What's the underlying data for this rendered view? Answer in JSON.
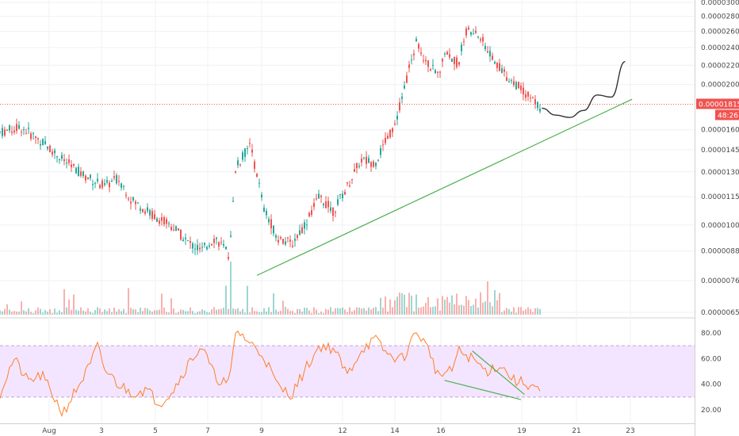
{
  "chart_data": [
    {
      "type": "candlestick",
      "panel": "price",
      "y_scale": "log",
      "ylim": [
        6.5e-06,
        3e-05
      ],
      "ytick_labels": [
        "0.00003000",
        "0.00002800",
        "0.00002600",
        "0.00002400",
        "0.00002200",
        "0.00002000",
        "0.00001815",
        "0.00001600",
        "0.00001450",
        "0.00001300",
        "0.00001150",
        "0.00001000",
        "0.00000880",
        "0.00000760",
        "0.00000650"
      ],
      "ytick_values": [
        3e-05,
        2.8e-05,
        2.6e-05,
        2.4e-05,
        2.2e-05,
        2e-05,
        1.815e-05,
        1.6e-05,
        1.45e-05,
        1.3e-05,
        1.15e-05,
        1e-05,
        8.8e-06,
        7.6e-06,
        6.5e-06
      ],
      "x_labels": [
        "Aug",
        "3",
        "5",
        "7",
        "9",
        "12",
        "14",
        "16",
        "19",
        "21",
        "23"
      ],
      "current_price": "0.00001815",
      "countdown": "48:26",
      "up_color": "#26a69a",
      "down_color": "#ef5350",
      "trendline_color": "#4caf50",
      "projection_color": "#333333",
      "volume": "shown as bars at bottom of price panel",
      "price_path": [
        [
          0,
          1.58e-05
        ],
        [
          0.03,
          1.62e-05
        ],
        [
          0.06,
          1.51e-05
        ],
        [
          0.09,
          1.38e-05
        ],
        [
          0.12,
          1.28e-05
        ],
        [
          0.15,
          1.21e-05
        ],
        [
          0.17,
          1.26e-05
        ],
        [
          0.19,
          1.13e-05
        ],
        [
          0.22,
          1.05e-05
        ],
        [
          0.25,
          9.9e-06
        ],
        [
          0.27,
          9.2e-06
        ],
        [
          0.29,
          8.8e-06
        ],
        [
          0.31,
          9.4e-06
        ],
        [
          0.33,
          8.6e-06
        ],
        [
          0.34,
          1.33e-05
        ],
        [
          0.36,
          1.48e-05
        ],
        [
          0.38,
          1.08e-05
        ],
        [
          0.4,
          9.4e-06
        ],
        [
          0.42,
          9.1e-06
        ],
        [
          0.44,
          1.01e-05
        ],
        [
          0.46,
          1.15e-05
        ],
        [
          0.48,
          1.07e-05
        ],
        [
          0.5,
          1.21e-05
        ],
        [
          0.52,
          1.38e-05
        ],
        [
          0.54,
          1.36e-05
        ],
        [
          0.56,
          1.55e-05
        ],
        [
          0.57,
          1.67e-05
        ],
        [
          0.58,
          1.92e-05
        ],
        [
          0.59,
          2.18e-05
        ],
        [
          0.6,
          2.48e-05
        ],
        [
          0.61,
          2.3e-05
        ],
        [
          0.63,
          2.08e-05
        ],
        [
          0.64,
          2.35e-05
        ],
        [
          0.66,
          2.22e-05
        ],
        [
          0.67,
          2.6e-05
        ],
        [
          0.69,
          2.54e-05
        ],
        [
          0.71,
          2.28e-05
        ],
        [
          0.73,
          2.08e-05
        ],
        [
          0.75,
          1.96e-05
        ],
        [
          0.77,
          1.83e-05
        ],
        [
          0.78,
          1.78e-05
        ]
      ],
      "projection_path": [
        [
          0.78,
          1.78e-05
        ],
        [
          0.8,
          1.72e-05
        ],
        [
          0.82,
          1.7e-05
        ],
        [
          0.84,
          1.76e-05
        ],
        [
          0.86,
          1.9e-05
        ],
        [
          0.88,
          1.88e-05
        ],
        [
          0.9,
          2.24e-05
        ]
      ],
      "trendline": [
        [
          0.37,
          7.8e-06
        ],
        [
          0.91,
          1.86e-05
        ]
      ]
    },
    {
      "type": "line",
      "panel": "rsi",
      "ylim": [
        13,
        88
      ],
      "ytick_labels": [
        "80.00",
        "60.00",
        "40.00",
        "20.00"
      ],
      "ytick_values": [
        80,
        60,
        40,
        20
      ],
      "band": [
        30,
        70
      ],
      "band_color": "#f3e5ff",
      "line_color": "#ff7f2a",
      "rsi_path": [
        [
          0,
          33
        ],
        [
          0.02,
          60
        ],
        [
          0.04,
          42
        ],
        [
          0.06,
          47
        ],
        [
          0.08,
          28
        ],
        [
          0.09,
          17
        ],
        [
          0.11,
          36
        ],
        [
          0.13,
          55
        ],
        [
          0.14,
          70
        ],
        [
          0.15,
          52
        ],
        [
          0.17,
          40
        ],
        [
          0.19,
          33
        ],
        [
          0.21,
          36
        ],
        [
          0.23,
          25
        ],
        [
          0.25,
          36
        ],
        [
          0.27,
          55
        ],
        [
          0.29,
          70
        ],
        [
          0.31,
          45
        ],
        [
          0.33,
          40
        ],
        [
          0.34,
          83
        ],
        [
          0.36,
          72
        ],
        [
          0.38,
          62
        ],
        [
          0.4,
          38
        ],
        [
          0.42,
          32
        ],
        [
          0.44,
          52
        ],
        [
          0.46,
          70
        ],
        [
          0.48,
          68
        ],
        [
          0.5,
          47
        ],
        [
          0.52,
          67
        ],
        [
          0.54,
          75
        ],
        [
          0.56,
          62
        ],
        [
          0.58,
          60
        ],
        [
          0.6,
          82
        ],
        [
          0.62,
          64
        ],
        [
          0.63,
          47
        ],
        [
          0.65,
          50
        ],
        [
          0.66,
          66
        ],
        [
          0.68,
          60
        ],
        [
          0.7,
          50
        ],
        [
          0.72,
          55
        ],
        [
          0.74,
          43
        ],
        [
          0.76,
          40
        ],
        [
          0.77,
          38
        ],
        [
          0.78,
          32
        ]
      ],
      "trendlines": [
        [
          [
            0.68,
            66
          ],
          [
            0.755,
            32
          ]
        ],
        [
          [
            0.64,
            43
          ],
          [
            0.75,
            28
          ]
        ]
      ]
    }
  ]
}
